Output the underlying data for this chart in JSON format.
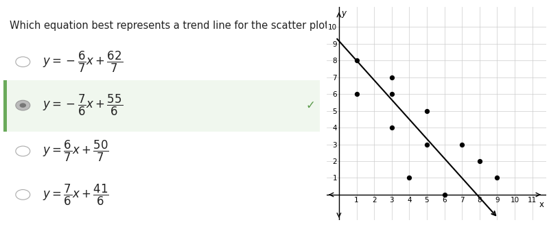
{
  "question": "Which equation best represents a trend line for the scatter plot?",
  "options": [
    {
      "selected": false,
      "correct": false
    },
    {
      "selected": true,
      "correct": true
    },
    {
      "selected": false,
      "correct": false
    },
    {
      "selected": false,
      "correct": false
    }
  ],
  "option_latex": [
    "$y = -\\dfrac{6}{7}x + \\dfrac{62}{7}$",
    "$y = -\\dfrac{7}{6}x + \\dfrac{55}{6}$",
    "$y = \\dfrac{6}{7}x + \\dfrac{50}{7}$",
    "$y = \\dfrac{7}{6}x + \\dfrac{41}{6}$"
  ],
  "scatter_points": [
    [
      1,
      8
    ],
    [
      1,
      6
    ],
    [
      3,
      7
    ],
    [
      3,
      6
    ],
    [
      3,
      4
    ],
    [
      4,
      1
    ],
    [
      5,
      5
    ],
    [
      5,
      3
    ],
    [
      6,
      0
    ],
    [
      7,
      3
    ],
    [
      8,
      2
    ],
    [
      9,
      1
    ]
  ],
  "trend_slope": -1.1667,
  "trend_intercept": 9.1667,
  "trend_x_start": -0.1,
  "trend_x_end": 8.8,
  "xlim": [
    -0.7,
    11.8
  ],
  "ylim": [
    -1.5,
    11.2
  ],
  "x_ticks": [
    1,
    2,
    3,
    4,
    5,
    6,
    7,
    8,
    9,
    10,
    11
  ],
  "y_ticks": [
    1,
    2,
    3,
    4,
    5,
    6,
    7,
    8,
    9,
    10
  ],
  "selected_bg": "#f0f7ee",
  "selected_border": "#6aaa5a",
  "checkmark_color": "#5a9a4a",
  "background_color": "#ffffff",
  "text_color": "#222222",
  "grid_color": "#cccccc"
}
